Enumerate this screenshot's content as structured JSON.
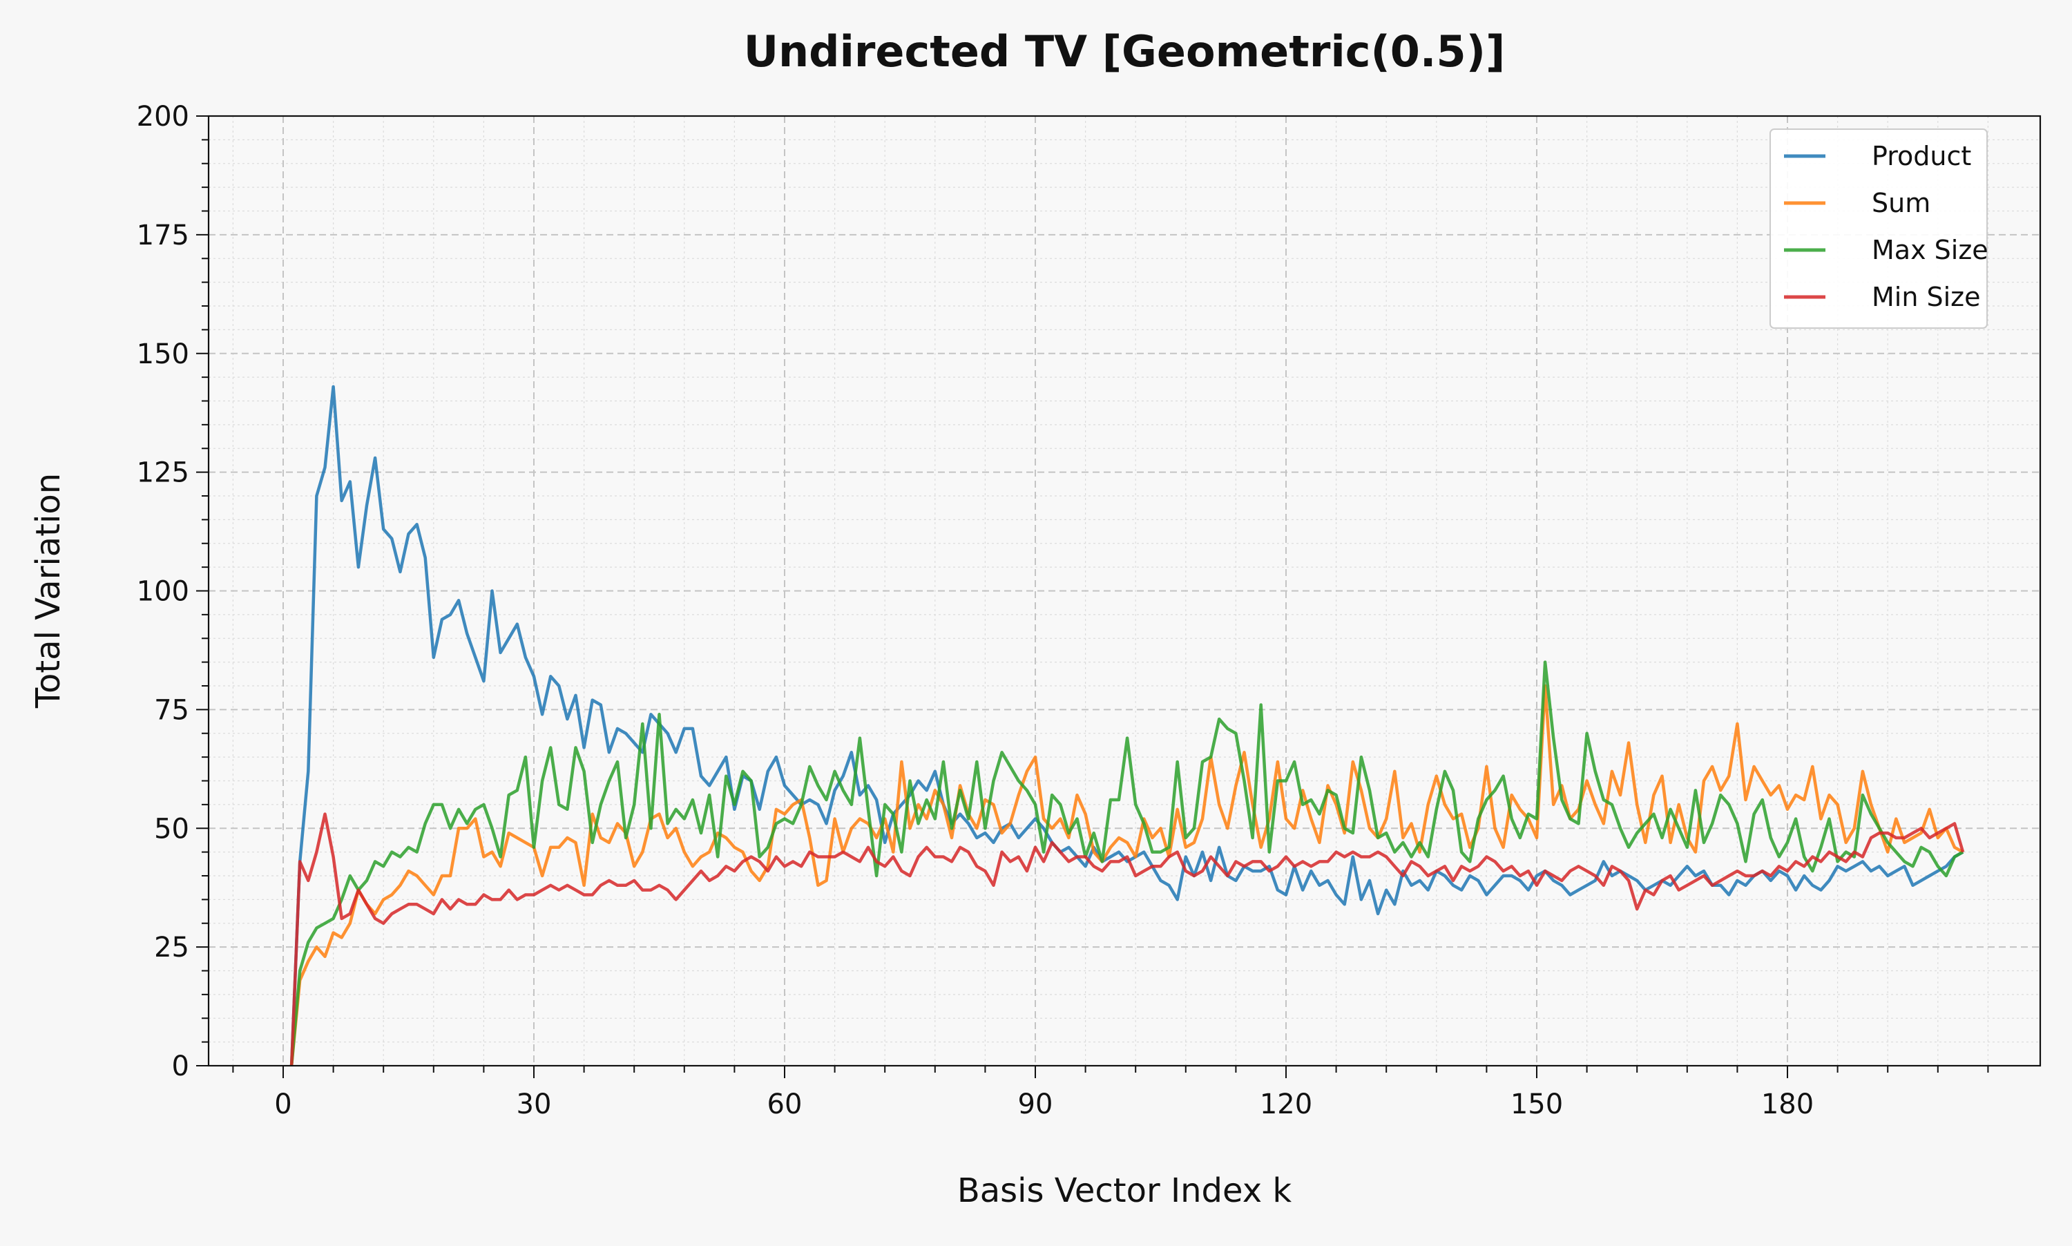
{
  "chart_data": {
    "type": "line",
    "title": "Undirected TV [Geometric(0.5)]",
    "xlabel": "Basis Vector Index k",
    "ylabel": "Total Variation",
    "xlim": [
      -9,
      205
    ],
    "ylim": [
      0,
      200
    ],
    "xticks": [
      0,
      30,
      60,
      90,
      120,
      150,
      180
    ],
    "yticks": [
      0,
      25,
      50,
      75,
      100,
      125,
      150,
      175,
      200
    ],
    "grid": true,
    "legend_position": "top-right",
    "x_start": 1,
    "series": [
      {
        "name": "Product",
        "color": "#1f77b4",
        "values": [
          0,
          43,
          62,
          120,
          126,
          143,
          119,
          123,
          105,
          118,
          128,
          113,
          111,
          104,
          112,
          114,
          107,
          86,
          94,
          95,
          98,
          91,
          86,
          81,
          100,
          87,
          90,
          93,
          86,
          82,
          74,
          82,
          80,
          73,
          78,
          67,
          77,
          76,
          66,
          71,
          70,
          68,
          66,
          74,
          72,
          70,
          66,
          71,
          71,
          61,
          59,
          62,
          65,
          54,
          61,
          60,
          54,
          62,
          65,
          59,
          57,
          55,
          56,
          55,
          51,
          58,
          61,
          66,
          57,
          59,
          56,
          47,
          53,
          55,
          57,
          60,
          58,
          62,
          55,
          51,
          53,
          51,
          48,
          49,
          47,
          50,
          51,
          48,
          50,
          52,
          50,
          47,
          45,
          46,
          44,
          42,
          46,
          43,
          44,
          45,
          43,
          44,
          45,
          42,
          39,
          38,
          35,
          44,
          40,
          45,
          39,
          46,
          40,
          39,
          42,
          41,
          41,
          42,
          37,
          36,
          42,
          37,
          41,
          38,
          39,
          36,
          34,
          44,
          35,
          39,
          32,
          37,
          34,
          41,
          38,
          39,
          37,
          41,
          40,
          38,
          37,
          40,
          39,
          36,
          38,
          40,
          40,
          39,
          37,
          40,
          41,
          39,
          38,
          36,
          37,
          38,
          39,
          43,
          40,
          41,
          40,
          39,
          37,
          38,
          39,
          38,
          40,
          42,
          40,
          41,
          38,
          38,
          36,
          39,
          38,
          40,
          41,
          39,
          41,
          40,
          37,
          40,
          38,
          37,
          39,
          42,
          41,
          42,
          43,
          41,
          42,
          40,
          41,
          42,
          38,
          39,
          40,
          41,
          42,
          44,
          45
        ]
      },
      {
        "name": "Sum",
        "color": "#ff7f0e",
        "values": [
          0,
          18,
          22,
          25,
          23,
          28,
          27,
          30,
          37,
          34,
          32,
          35,
          36,
          38,
          41,
          40,
          38,
          36,
          40,
          40,
          50,
          50,
          52,
          44,
          45,
          42,
          49,
          48,
          47,
          46,
          40,
          46,
          46,
          48,
          47,
          38,
          53,
          48,
          47,
          51,
          49,
          42,
          45,
          52,
          53,
          48,
          50,
          45,
          42,
          44,
          45,
          49,
          48,
          46,
          45,
          41,
          39,
          42,
          54,
          53,
          55,
          56,
          48,
          38,
          39,
          52,
          45,
          50,
          52,
          51,
          48,
          52,
          45,
          64,
          50,
          55,
          52,
          58,
          55,
          48,
          59,
          53,
          50,
          56,
          55,
          49,
          51,
          57,
          62,
          65,
          52,
          50,
          52,
          48,
          57,
          53,
          45,
          43,
          46,
          48,
          47,
          44,
          52,
          48,
          50,
          44,
          54,
          46,
          47,
          52,
          65,
          55,
          50,
          59,
          66,
          55,
          46,
          52,
          64,
          52,
          50,
          58,
          52,
          47,
          59,
          55,
          49,
          64,
          58,
          50,
          48,
          52,
          62,
          48,
          51,
          45,
          55,
          61,
          55,
          52,
          53,
          46,
          50,
          63,
          50,
          46,
          57,
          54,
          52,
          48,
          80,
          55,
          59,
          52,
          54,
          60,
          55,
          51,
          62,
          57,
          68,
          55,
          47,
          57,
          61,
          47,
          55,
          48,
          45,
          60,
          63,
          58,
          61,
          72,
          56,
          63,
          60,
          57,
          59,
          54,
          57,
          56,
          63,
          52,
          57,
          55,
          47,
          50,
          62,
          55,
          50,
          45,
          52,
          47,
          48,
          49,
          54,
          48,
          50,
          46,
          45
        ]
      },
      {
        "name": "Max Size",
        "color": "#2ca02c",
        "values": [
          0,
          20,
          26,
          29,
          30,
          31,
          35,
          40,
          37,
          39,
          43,
          42,
          45,
          44,
          46,
          45,
          51,
          55,
          55,
          50,
          54,
          51,
          54,
          55,
          50,
          44,
          57,
          58,
          65,
          46,
          60,
          67,
          55,
          54,
          67,
          62,
          47,
          55,
          60,
          64,
          48,
          55,
          72,
          50,
          74,
          51,
          54,
          52,
          56,
          49,
          57,
          44,
          61,
          55,
          62,
          60,
          44,
          46,
          51,
          52,
          51,
          55,
          63,
          59,
          56,
          62,
          58,
          55,
          69,
          54,
          40,
          55,
          53,
          45,
          60,
          51,
          56,
          52,
          64,
          50,
          58,
          52,
          64,
          50,
          60,
          66,
          63,
          60,
          58,
          55,
          45,
          57,
          55,
          49,
          52,
          44,
          49,
          43,
          56,
          56,
          69,
          55,
          51,
          45,
          45,
          46,
          64,
          48,
          50,
          64,
          65,
          73,
          71,
          70,
          60,
          48,
          76,
          45,
          60,
          60,
          64,
          55,
          56,
          53,
          58,
          57,
          50,
          49,
          65,
          58,
          48,
          49,
          45,
          47,
          44,
          47,
          44,
          54,
          62,
          58,
          45,
          43,
          52,
          56,
          58,
          61,
          52,
          48,
          53,
          52,
          85,
          69,
          56,
          52,
          51,
          70,
          62,
          56,
          55,
          50,
          46,
          49,
          51,
          53,
          48,
          54,
          50,
          46,
          58,
          47,
          51,
          57,
          55,
          51,
          43,
          53,
          56,
          48,
          44,
          47,
          52,
          44,
          41,
          46,
          52,
          43,
          45,
          44,
          57,
          53,
          50,
          47,
          45,
          43,
          42,
          46,
          45,
          42,
          40,
          44,
          45
        ]
      },
      {
        "name": "Min Size",
        "color": "#d62728",
        "values": [
          0,
          43,
          39,
          45,
          53,
          44,
          31,
          32,
          37,
          34,
          31,
          30,
          32,
          33,
          34,
          34,
          33,
          32,
          35,
          33,
          35,
          34,
          34,
          36,
          35,
          35,
          37,
          35,
          36,
          36,
          37,
          38,
          37,
          38,
          37,
          36,
          36,
          38,
          39,
          38,
          38,
          39,
          37,
          37,
          38,
          37,
          35,
          37,
          39,
          41,
          39,
          40,
          42,
          41,
          43,
          44,
          43,
          41,
          44,
          42,
          43,
          42,
          45,
          44,
          44,
          44,
          45,
          44,
          43,
          46,
          43,
          42,
          44,
          41,
          40,
          44,
          46,
          44,
          44,
          43,
          46,
          45,
          42,
          41,
          38,
          45,
          43,
          44,
          41,
          46,
          43,
          47,
          45,
          43,
          44,
          44,
          42,
          41,
          43,
          43,
          44,
          40,
          41,
          42,
          42,
          44,
          45,
          41,
          40,
          41,
          44,
          42,
          40,
          43,
          42,
          43,
          43,
          41,
          42,
          44,
          42,
          43,
          42,
          43,
          43,
          45,
          44,
          45,
          44,
          44,
          45,
          44,
          42,
          40,
          43,
          42,
          40,
          41,
          42,
          39,
          42,
          41,
          42,
          44,
          43,
          41,
          42,
          40,
          41,
          38,
          41,
          40,
          39,
          41,
          42,
          41,
          40,
          38,
          42,
          41,
          39,
          33,
          37,
          36,
          39,
          40,
          37,
          38,
          39,
          40,
          38,
          39,
          40,
          41,
          40,
          40,
          41,
          40,
          42,
          41,
          43,
          42,
          44,
          43,
          45,
          44,
          43,
          45,
          44,
          48,
          49,
          49,
          48,
          48,
          49,
          50,
          48,
          49,
          50,
          51,
          45
        ]
      }
    ]
  }
}
